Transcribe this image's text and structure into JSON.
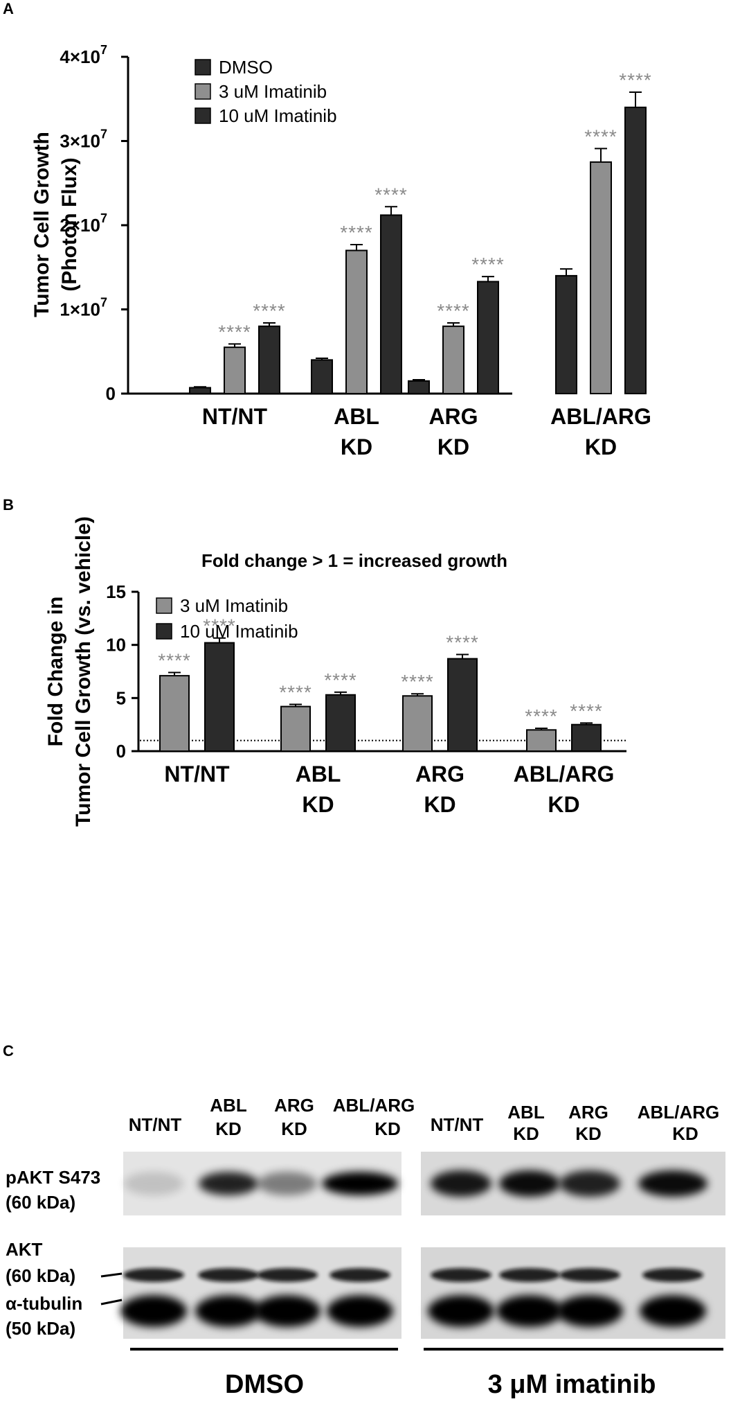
{
  "panels": {
    "a": {
      "letter": "A"
    },
    "b": {
      "letter": "B"
    },
    "c": {
      "letter": "C"
    }
  },
  "colors": {
    "dmso": "#2b2b2b",
    "im3": "#8f8f8f",
    "im10": "#2b2b2b",
    "stars": "#8a8a8a"
  },
  "chart_data": [
    {
      "type": "bar",
      "panel": "A",
      "title": "",
      "ylabel": [
        "Tumor Cell Growth",
        "(Photon Flux)"
      ],
      "ylim": [
        0,
        40000000
      ],
      "yticks": [
        {
          "value": 0,
          "mant": "0",
          "exp": ""
        },
        {
          "value": 10000000,
          "mant": "1×10",
          "exp": "7"
        },
        {
          "value": 20000000,
          "mant": "2×10",
          "exp": "7"
        },
        {
          "value": 30000000,
          "mant": "3×10",
          "exp": "7"
        },
        {
          "value": 40000000,
          "mant": "4×10",
          "exp": "7"
        }
      ],
      "categories": [
        [
          "NT/NT"
        ],
        [
          "ABL",
          "KD"
        ],
        [
          "ARG",
          "KD"
        ],
        [
          "ABL/ARG",
          "KD"
        ]
      ],
      "series": [
        {
          "name": "DMSO",
          "color": "#2b2b2b",
          "values": [
            700000,
            4000000,
            1500000,
            14000000
          ],
          "errors": [
            100000,
            200000,
            150000,
            800000
          ],
          "sig": [
            "",
            "",
            "",
            ""
          ]
        },
        {
          "name": "3 uM Imatinib",
          "color": "#8f8f8f",
          "values": [
            5500000,
            17000000,
            8000000,
            27500000
          ],
          "errors": [
            400000,
            700000,
            400000,
            1600000
          ],
          "sig": [
            "****",
            "****",
            "****",
            "****"
          ]
        },
        {
          "name": "10 uM Imatinib",
          "color": "#2b2b2b",
          "values": [
            8000000,
            21200000,
            13300000,
            34000000
          ],
          "errors": [
            400000,
            1000000,
            600000,
            1800000
          ],
          "sig": [
            "****",
            "****",
            "****",
            "****"
          ]
        }
      ],
      "legend": [
        "DMSO",
        "3 uM Imatinib",
        "10 uM Imatinib"
      ],
      "legend_position": "top-left"
    },
    {
      "type": "bar",
      "panel": "B",
      "title": "Fold change > 1 = increased growth",
      "ylabel": [
        "Fold Change in",
        "Tumor Cell Growth (vs. vehicle)"
      ],
      "ylim": [
        0,
        15
      ],
      "yticks": [
        {
          "value": 0,
          "mant": "0",
          "exp": ""
        },
        {
          "value": 5,
          "mant": "5",
          "exp": ""
        },
        {
          "value": 10,
          "mant": "10",
          "exp": ""
        },
        {
          "value": 15,
          "mant": "15",
          "exp": ""
        }
      ],
      "reference_line": 1,
      "categories": [
        [
          "NT/NT"
        ],
        [
          "ABL",
          "KD"
        ],
        [
          "ARG",
          "KD"
        ],
        [
          "ABL/ARG",
          "KD"
        ]
      ],
      "series": [
        {
          "name": "3 uM Imatinib",
          "color": "#8f8f8f",
          "values": [
            7.1,
            4.2,
            5.2,
            2.0
          ],
          "errors": [
            0.3,
            0.2,
            0.2,
            0.15
          ],
          "sig": [
            "****",
            "****",
            "****",
            "****"
          ]
        },
        {
          "name": "10 uM Imatinib",
          "color": "#2b2b2b",
          "values": [
            10.2,
            5.3,
            8.7,
            2.5
          ],
          "errors": [
            0.45,
            0.25,
            0.4,
            0.15
          ],
          "sig": [
            "****",
            "****",
            "****",
            "****"
          ]
        }
      ],
      "legend": [
        "3 uM Imatinib",
        "10 uM Imatinib"
      ],
      "legend_position": "top-left"
    }
  ],
  "western": {
    "dmso_lanes": [
      [
        "NT/NT"
      ],
      [
        "ABL",
        "KD"
      ],
      [
        "ARG",
        "KD"
      ],
      [
        "ABL/ARG",
        "KD"
      ]
    ],
    "imatinib_lanes": [
      [
        "NT/NT"
      ],
      [
        "ABL",
        "KD"
      ],
      [
        "ARG",
        "KD"
      ],
      [
        "ABL/ARG",
        "KD"
      ]
    ],
    "row_labels": {
      "pakt": [
        "pAKT S473",
        "(60 kDa)"
      ],
      "akt": [
        "AKT",
        "(60 kDa)"
      ],
      "tub": [
        "α-tubulin",
        "(50 kDa)"
      ]
    },
    "treatments": [
      "DMSO",
      "3 μM imatinib"
    ],
    "pakt_intensity_dmso": [
      0.15,
      0.85,
      0.45,
      1.0
    ],
    "pakt_intensity_imatinib": [
      0.9,
      0.95,
      0.85,
      0.95
    ]
  }
}
